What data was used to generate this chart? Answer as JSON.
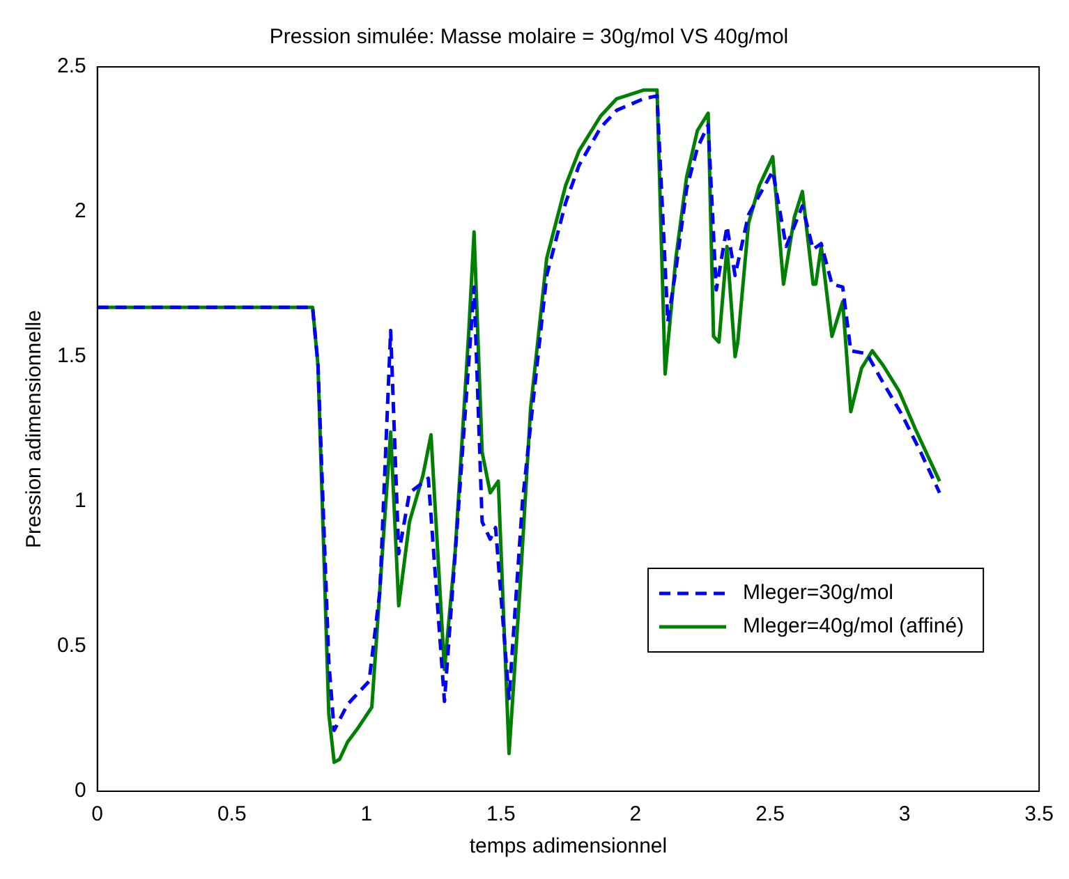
{
  "chart_data": {
    "type": "line",
    "title": "Pression simulée: Masse molaire = 30g/mol VS 40g/mol",
    "xlabel": "temps adimensionnel",
    "ylabel": "Pression adimensionnelle",
    "xlim": [
      0,
      3.5
    ],
    "xticks": [
      0,
      0.5,
      1,
      1.5,
      2,
      2.5,
      3,
      3.5
    ],
    "ylim": [
      0,
      2.5
    ],
    "yticks": [
      0,
      0.5,
      1,
      1.5,
      2,
      2.5
    ],
    "grid": false,
    "legend": "bottom right",
    "marker": "none",
    "series": [
      {
        "name": "Mleger=30g/mol",
        "color": "#0000ff",
        "line_style": "dashed",
        "x": [
          0,
          0.8,
          0.82,
          0.86,
          0.88,
          0.93,
          1.01,
          1.05,
          1.09,
          1.12,
          1.16,
          1.23,
          1.29,
          1.34,
          1.4,
          1.43,
          1.46,
          1.48,
          1.53,
          1.58,
          1.62,
          1.67,
          1.74,
          1.79,
          1.87,
          1.93,
          2.03,
          2.08,
          2.12,
          2.15,
          2.19,
          2.23,
          2.27,
          2.3,
          2.34,
          2.37,
          2.42,
          2.51,
          2.56,
          2.59,
          2.62,
          2.66,
          2.69,
          2.73,
          2.77,
          2.8,
          2.86,
          2.92,
          2.99,
          3.06,
          3.13
        ],
        "values": [
          1.67,
          1.67,
          1.47,
          0.45,
          0.21,
          0.3,
          0.38,
          0.69,
          1.59,
          0.82,
          1.03,
          1.08,
          0.31,
          0.95,
          1.74,
          0.93,
          0.87,
          0.91,
          0.32,
          1.0,
          1.35,
          1.78,
          2.03,
          2.16,
          2.29,
          2.35,
          2.39,
          2.4,
          1.62,
          1.8,
          2.08,
          2.22,
          2.3,
          1.73,
          1.95,
          1.78,
          1.99,
          2.14,
          1.88,
          1.95,
          2.02,
          1.87,
          1.89,
          1.75,
          1.74,
          1.52,
          1.51,
          1.41,
          1.3,
          1.17,
          1.03
        ]
      },
      {
        "name": "Mleger=40g/mol (affiné)",
        "color": "#008000",
        "line_style": "solid",
        "x": [
          0,
          0.8,
          0.82,
          0.86,
          0.88,
          0.9,
          0.93,
          0.97,
          1.02,
          1.09,
          1.12,
          1.16,
          1.21,
          1.24,
          1.29,
          1.33,
          1.38,
          1.4,
          1.43,
          1.46,
          1.49,
          1.53,
          1.57,
          1.61,
          1.67,
          1.74,
          1.79,
          1.87,
          1.93,
          2.03,
          2.08,
          2.11,
          2.15,
          2.19,
          2.23,
          2.27,
          2.29,
          2.31,
          2.34,
          2.37,
          2.38,
          2.42,
          2.46,
          2.51,
          2.55,
          2.59,
          2.62,
          2.66,
          2.67,
          2.69,
          2.73,
          2.77,
          2.8,
          2.84,
          2.88,
          2.92,
          2.98,
          3.04,
          3.13
        ],
        "values": [
          1.67,
          1.67,
          1.47,
          0.27,
          0.1,
          0.11,
          0.17,
          0.22,
          0.29,
          1.24,
          0.64,
          0.93,
          1.09,
          1.23,
          0.42,
          0.83,
          1.58,
          1.93,
          1.17,
          1.03,
          1.07,
          0.13,
          0.69,
          1.32,
          1.84,
          2.09,
          2.21,
          2.33,
          2.39,
          2.42,
          2.42,
          1.44,
          1.84,
          2.12,
          2.28,
          2.34,
          1.57,
          1.55,
          1.88,
          1.5,
          1.55,
          1.96,
          2.09,
          2.19,
          1.75,
          1.98,
          2.07,
          1.75,
          1.75,
          1.88,
          1.57,
          1.69,
          1.31,
          1.46,
          1.52,
          1.47,
          1.38,
          1.25,
          1.07
        ]
      }
    ]
  }
}
